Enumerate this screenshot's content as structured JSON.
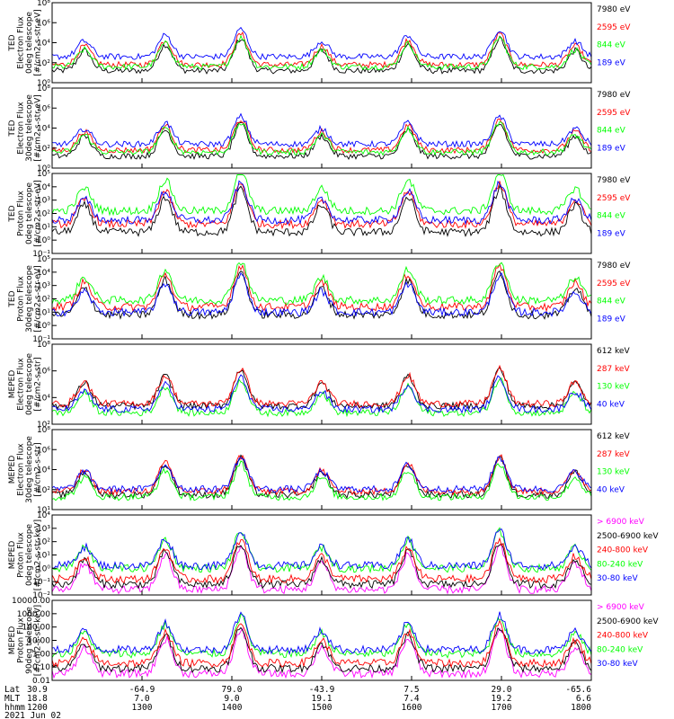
{
  "colors": {
    "black": "#000000",
    "red": "#ff0000",
    "green": "#00ff00",
    "blue": "#0000ff",
    "magenta": "#ff00ff"
  },
  "chart_data": [
    {
      "type": "line",
      "scale": "log",
      "ylim_exp": [
        0,
        8
      ],
      "y_ticks": [
        "10⁰",
        "10²",
        "10⁴",
        "10⁶",
        "10⁸"
      ],
      "ylabel": [
        "TED",
        "Electron Flux",
        "0deg telescope",
        "[#/cm2-s-str-eV]"
      ],
      "series": [
        {
          "name": "7980 eV",
          "color": "black",
          "level": 1.2
        },
        {
          "name": "2595 eV",
          "color": "red",
          "level": 1.8
        },
        {
          "name": "844 eV",
          "color": "green",
          "level": 1.6
        },
        {
          "name": "189 eV",
          "color": "blue",
          "level": 2.6
        }
      ]
    },
    {
      "type": "line",
      "scale": "log",
      "ylim_exp": [
        0,
        8
      ],
      "y_ticks": [
        "10⁰",
        "10²",
        "10⁴",
        "10⁶",
        "10⁸"
      ],
      "ylabel": [
        "TED",
        "Electron Flux",
        "30deg telescope",
        "[#/cm2-s-str-eV]"
      ],
      "series": [
        {
          "name": "7980 eV",
          "color": "black",
          "level": 1.2
        },
        {
          "name": "2595 eV",
          "color": "red",
          "level": 1.8
        },
        {
          "name": "844 eV",
          "color": "green",
          "level": 1.6
        },
        {
          "name": "189 eV",
          "color": "blue",
          "level": 2.4
        }
      ]
    },
    {
      "type": "line",
      "scale": "log",
      "ylim_exp": [
        -1,
        5
      ],
      "y_ticks": [
        "10⁻¹",
        "10⁰",
        "10¹",
        "10²",
        "10³",
        "10⁴",
        "10⁵"
      ],
      "ylabel": [
        "TED",
        "Proton Flux",
        "0deg telescope",
        "[#/cm2-s-str-eV]"
      ],
      "series": [
        {
          "name": "7980 eV",
          "color": "black",
          "level": 0.6
        },
        {
          "name": "2595 eV",
          "color": "red",
          "level": 1.2
        },
        {
          "name": "844 eV",
          "color": "green",
          "level": 2.2
        },
        {
          "name": "189 eV",
          "color": "blue",
          "level": 1.5
        }
      ]
    },
    {
      "type": "line",
      "scale": "log",
      "ylim_exp": [
        -1,
        5
      ],
      "y_ticks": [
        "10⁻¹",
        "10⁰",
        "10¹",
        "10²",
        "10³",
        "10⁴",
        "10⁵"
      ],
      "ylabel": [
        "TED",
        "Proton Flux",
        "30deg telescope",
        "[#/cm2-s-str-eV]"
      ],
      "series": [
        {
          "name": "7980 eV",
          "color": "black",
          "level": 0.8
        },
        {
          "name": "2595 eV",
          "color": "red",
          "level": 1.4
        },
        {
          "name": "844 eV",
          "color": "green",
          "level": 1.9
        },
        {
          "name": "189 eV",
          "color": "blue",
          "level": 1.0
        }
      ]
    },
    {
      "type": "line",
      "scale": "log",
      "ylim_exp": [
        1,
        8
      ],
      "y_ticks": [
        "10²",
        "10⁴",
        "10⁶",
        "10⁸"
      ],
      "ylabel": [
        "MEPED",
        "Electron Flux",
        "0deg telescope",
        "[#/cm2-s-str]"
      ],
      "series": [
        {
          "name": "612 keV",
          "color": "black",
          "level": 2.6
        },
        {
          "name": "287 keV",
          "color": "red",
          "level": 2.8
        },
        {
          "name": "130 keV",
          "color": "green",
          "level": 2.0
        },
        {
          "name": "40 keV",
          "color": "blue",
          "level": 2.3
        }
      ]
    },
    {
      "type": "line",
      "scale": "log",
      "ylim_exp": [
        1,
        8
      ],
      "y_ticks": [
        "10¹",
        "10²",
        "10⁴",
        "10⁶",
        "10⁸"
      ],
      "ylabel": [
        "MEPED",
        "Electron Flux",
        "30deg telescope",
        "[#/cm2-s-str]"
      ],
      "series": [
        {
          "name": "612 keV",
          "color": "black",
          "level": 2.3
        },
        {
          "name": "287 keV",
          "color": "red",
          "level": 2.6
        },
        {
          "name": "130 keV",
          "color": "green",
          "level": 2.1
        },
        {
          "name": "40 keV",
          "color": "blue",
          "level": 2.8
        }
      ]
    },
    {
      "type": "line",
      "scale": "log",
      "ylim_exp": [
        -2,
        4
      ],
      "y_ticks": [
        "10⁻²",
        "10⁻¹",
        "10⁰",
        "10¹",
        "10²",
        "10³",
        "10⁴"
      ],
      "ylabel": [
        "MEPED",
        "Proton Flux",
        "0deg telescope",
        "[#/cm2-s-str-keV]"
      ],
      "series": [
        {
          "name": "> 6900 keV",
          "color": "magenta",
          "level": -1.6
        },
        {
          "name": "2500-6900 keV",
          "color": "black",
          "level": -1.2
        },
        {
          "name": "240-800 keV",
          "color": "red",
          "level": -0.8
        },
        {
          "name": "80-240 keV",
          "color": "green",
          "level": 0.0
        },
        {
          "name": "30-80 keV",
          "color": "blue",
          "level": 0.2
        }
      ]
    },
    {
      "type": "line",
      "scale": "log",
      "ylim_exp": [
        -2,
        4
      ],
      "y_ticks": [
        "0.01",
        "0.10",
        "1.00",
        "10.00",
        "100.00",
        "1000.00",
        "10000.00"
      ],
      "ylabel": [
        "MEPED",
        "Proton Flux",
        "90deg telescope",
        "[#/cm2-s-str-keV]"
      ],
      "series": [
        {
          "name": "> 6900 keV",
          "color": "magenta",
          "level": -1.5
        },
        {
          "name": "2500-6900 keV",
          "color": "black",
          "level": -1.1
        },
        {
          "name": "240-800 keV",
          "color": "red",
          "level": -0.7
        },
        {
          "name": "80-240 keV",
          "color": "green",
          "level": 0.0
        },
        {
          "name": "30-80 keV",
          "color": "blue",
          "level": 0.3
        }
      ]
    }
  ],
  "x_axis": {
    "rows": [
      "Lat",
      "MLT",
      "hhmm"
    ],
    "ticks": [
      {
        "lat": "30.9",
        "mlt": "18.8",
        "time": "1200"
      },
      {
        "lat": "-64.9",
        "mlt": "7.0",
        "time": "1300"
      },
      {
        "lat": "79.0",
        "mlt": "9.0",
        "time": "1400"
      },
      {
        "lat": "-43.9",
        "mlt": "19.1",
        "time": "1500"
      },
      {
        "lat": "7.5",
        "mlt": "7.4",
        "time": "1600"
      },
      {
        "lat": "29.0",
        "mlt": "19.2",
        "time": "1700"
      },
      {
        "lat": "-65.6",
        "mlt": "6.6",
        "time": "1800"
      }
    ],
    "date": "2021 Jun 02"
  }
}
